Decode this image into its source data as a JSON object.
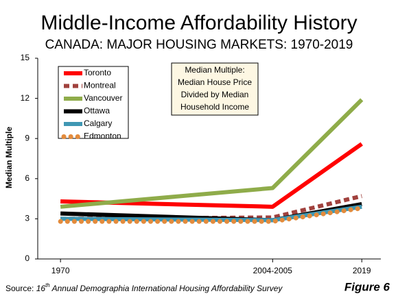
{
  "chart_data": {
    "type": "line",
    "title": "Middle-Income Affordability History",
    "subtitle": "CANADA: MAJOR HOUSING MARKETS: 1970-2019",
    "y_label": "Median Multiple",
    "x": [
      1970,
      2004.5,
      2019
    ],
    "xlim": [
      1966.3,
      2022.1
    ],
    "xticks": [
      1970,
      {
        "value": 2004.5,
        "label": "2004-2005"
      },
      2019
    ],
    "ylim": [
      0,
      15
    ],
    "yticks": [
      0,
      3,
      6,
      9,
      12,
      15
    ],
    "grid": false,
    "legend": "top-left",
    "series": [
      {
        "name": "Toronto",
        "color": "#ff0000",
        "style": "solid",
        "values": [
          4.3,
          3.9,
          8.6
        ]
      },
      {
        "name": "Montreal",
        "color": "#a0413d",
        "style": "dashed",
        "values": [
          3.0,
          3.1,
          4.7
        ]
      },
      {
        "name": "Vancouver",
        "color": "#8fac4a",
        "style": "solid",
        "values": [
          3.9,
          5.3,
          11.9
        ]
      },
      {
        "name": "Ottawa",
        "color": "#000000",
        "style": "solid",
        "values": [
          3.4,
          2.9,
          4.1
        ]
      },
      {
        "name": "Calgary",
        "color": "#3f97b3",
        "style": "solid",
        "values": [
          3.0,
          2.9,
          3.9
        ]
      },
      {
        "name": "Edmonton",
        "color": "#e38b3c",
        "style": "dotted",
        "values": [
          2.8,
          2.8,
          3.8
        ]
      }
    ],
    "annotation": [
      "Median Multiple:",
      "Median House Price",
      "Divided by Median",
      "Household Income"
    ],
    "source": [
      "Source: ",
      "16",
      "th",
      " Annual Demographia International Housing Affordability Survey"
    ],
    "figure_label": "Figure 6"
  }
}
